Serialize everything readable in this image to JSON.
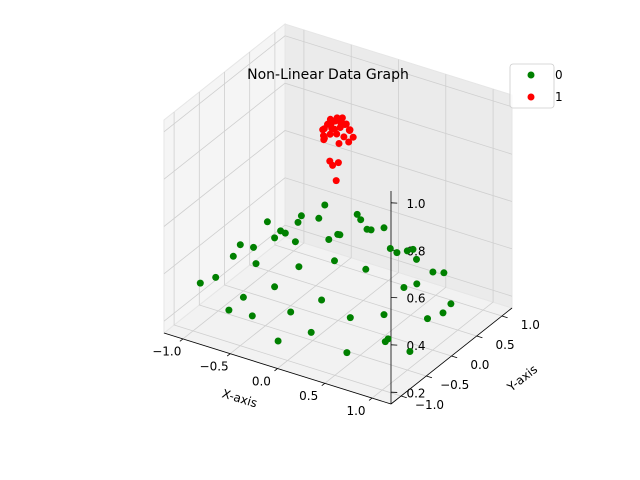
{
  "chart_data": {
    "type": "scatter",
    "projection": "3d",
    "title": "Non-Linear Data Graph",
    "xlabel": "X-axis",
    "ylabel": "Y-axis",
    "zlabel": "",
    "xlim": [
      -1.2,
      1.2
    ],
    "ylim": [
      -1.2,
      1.2
    ],
    "zlim": [
      0.15,
      1.05
    ],
    "x_ticks": [
      "−1.0",
      "−0.5",
      "0.0",
      "0.5",
      "1.0"
    ],
    "y_ticks": [
      "−1.0",
      "−0.5",
      "0.0",
      "0.5",
      "1.0"
    ],
    "z_ticks": [
      "0.2",
      "0.4",
      "0.6",
      "0.8",
      "1.0"
    ],
    "grid": true,
    "legend_position": "top-right",
    "colors": {
      "0": "#008000",
      "1": "#ff0000"
    },
    "series": [
      {
        "name": "0",
        "color": "#008000",
        "points": [
          [
            -0.95,
            -0.95,
            0.35
          ],
          [
            -0.7,
            -0.85,
            0.25
          ],
          [
            -0.4,
            -0.95,
            0.28
          ],
          [
            -0.1,
            -1.0,
            0.22
          ],
          [
            0.25,
            -1.0,
            0.3
          ],
          [
            0.6,
            -0.95,
            0.25
          ],
          [
            0.9,
            -0.75,
            0.3
          ],
          [
            1.0,
            -0.45,
            0.22
          ],
          [
            1.0,
            -0.1,
            0.3
          ],
          [
            0.95,
            0.3,
            0.25
          ],
          [
            0.8,
            0.6,
            0.35
          ],
          [
            0.55,
            0.85,
            0.28
          ],
          [
            0.2,
            1.0,
            0.3
          ],
          [
            -0.2,
            0.95,
            0.35
          ],
          [
            -0.55,
            0.85,
            0.28
          ],
          [
            -0.85,
            0.55,
            0.32
          ],
          [
            -1.0,
            0.2,
            0.3
          ],
          [
            -1.0,
            -0.2,
            0.33
          ],
          [
            -1.0,
            -0.55,
            0.3
          ],
          [
            -0.8,
            0.1,
            0.45
          ],
          [
            -0.6,
            -0.5,
            0.4
          ],
          [
            -0.35,
            -0.6,
            0.35
          ],
          [
            -0.1,
            -0.75,
            0.3
          ],
          [
            0.2,
            -0.7,
            0.38
          ],
          [
            0.45,
            -0.6,
            0.32
          ],
          [
            0.7,
            -0.4,
            0.33
          ],
          [
            0.75,
            -0.1,
            0.4
          ],
          [
            0.7,
            0.25,
            0.35
          ],
          [
            0.5,
            0.55,
            0.42
          ],
          [
            0.25,
            0.7,
            0.35
          ],
          [
            -0.05,
            0.75,
            0.4
          ],
          [
            -0.35,
            0.65,
            0.36
          ],
          [
            -0.6,
            0.4,
            0.45
          ],
          [
            -0.75,
            0.15,
            0.38
          ],
          [
            -0.9,
            -0.25,
            0.4
          ],
          [
            -0.5,
            -0.2,
            0.5
          ],
          [
            -0.2,
            -0.4,
            0.42
          ],
          [
            0.15,
            -0.35,
            0.48
          ],
          [
            0.4,
            -0.2,
            0.45
          ],
          [
            0.5,
            0.1,
            0.5
          ],
          [
            0.3,
            0.35,
            0.52
          ],
          [
            0.0,
            0.45,
            0.5
          ],
          [
            -0.3,
            0.3,
            0.55
          ],
          [
            -0.45,
            0.05,
            0.5
          ],
          [
            -0.15,
            -0.1,
            0.58
          ],
          [
            0.15,
            0.1,
            0.6
          ],
          [
            0.1,
            -0.15,
            0.55
          ],
          [
            -0.6,
            -0.75,
            0.3
          ],
          [
            0.85,
            -0.6,
            0.28
          ],
          [
            0.35,
            0.9,
            0.3
          ],
          [
            -0.85,
            0.75,
            0.25
          ],
          [
            0.9,
            0.55,
            0.24
          ]
        ]
      },
      {
        "name": "1",
        "color": "#ff0000",
        "points": [
          [
            -0.08,
            0.0,
            0.99
          ],
          [
            -0.05,
            0.04,
            0.98
          ],
          [
            0.0,
            0.06,
            0.99
          ],
          [
            0.05,
            0.03,
            0.98
          ],
          [
            0.08,
            -0.01,
            0.99
          ],
          [
            0.05,
            -0.05,
            0.98
          ],
          [
            0.0,
            -0.07,
            0.97
          ],
          [
            -0.05,
            -0.05,
            0.98
          ],
          [
            -0.1,
            -0.02,
            0.97
          ],
          [
            -0.12,
            0.04,
            0.96
          ],
          [
            -0.08,
            0.08,
            0.97
          ],
          [
            -0.02,
            0.1,
            0.96
          ],
          [
            0.04,
            0.09,
            0.97
          ],
          [
            0.1,
            0.05,
            0.96
          ],
          [
            0.12,
            0.0,
            0.97
          ],
          [
            0.1,
            -0.07,
            0.95
          ],
          [
            0.04,
            -0.1,
            0.96
          ],
          [
            -0.03,
            -0.1,
            0.95
          ],
          [
            -0.13,
            -0.06,
            0.95
          ],
          [
            -0.15,
            0.01,
            0.94
          ],
          [
            -0.02,
            0.02,
            1.0
          ],
          [
            0.03,
            -0.02,
            1.0
          ],
          [
            -0.04,
            -0.02,
            0.99
          ],
          [
            0.02,
            0.05,
            1.0
          ],
          [
            0.15,
            0.02,
            0.94
          ],
          [
            0.14,
            -0.05,
            0.93
          ],
          [
            0.08,
            -0.13,
            0.93
          ],
          [
            -0.12,
            0.1,
            0.93
          ],
          [
            0.06,
            0.12,
            0.94
          ],
          [
            -0.08,
            -0.12,
            0.93
          ],
          [
            0.02,
            -0.2,
            0.86
          ],
          [
            0.06,
            -0.22,
            0.85
          ],
          [
            0.1,
            -0.18,
            0.86
          ],
          [
            0.12,
            -0.26,
            0.8
          ],
          [
            -0.14,
            -0.02,
            0.9
          ],
          [
            -0.18,
            0.05,
            0.9
          ]
        ]
      }
    ]
  }
}
